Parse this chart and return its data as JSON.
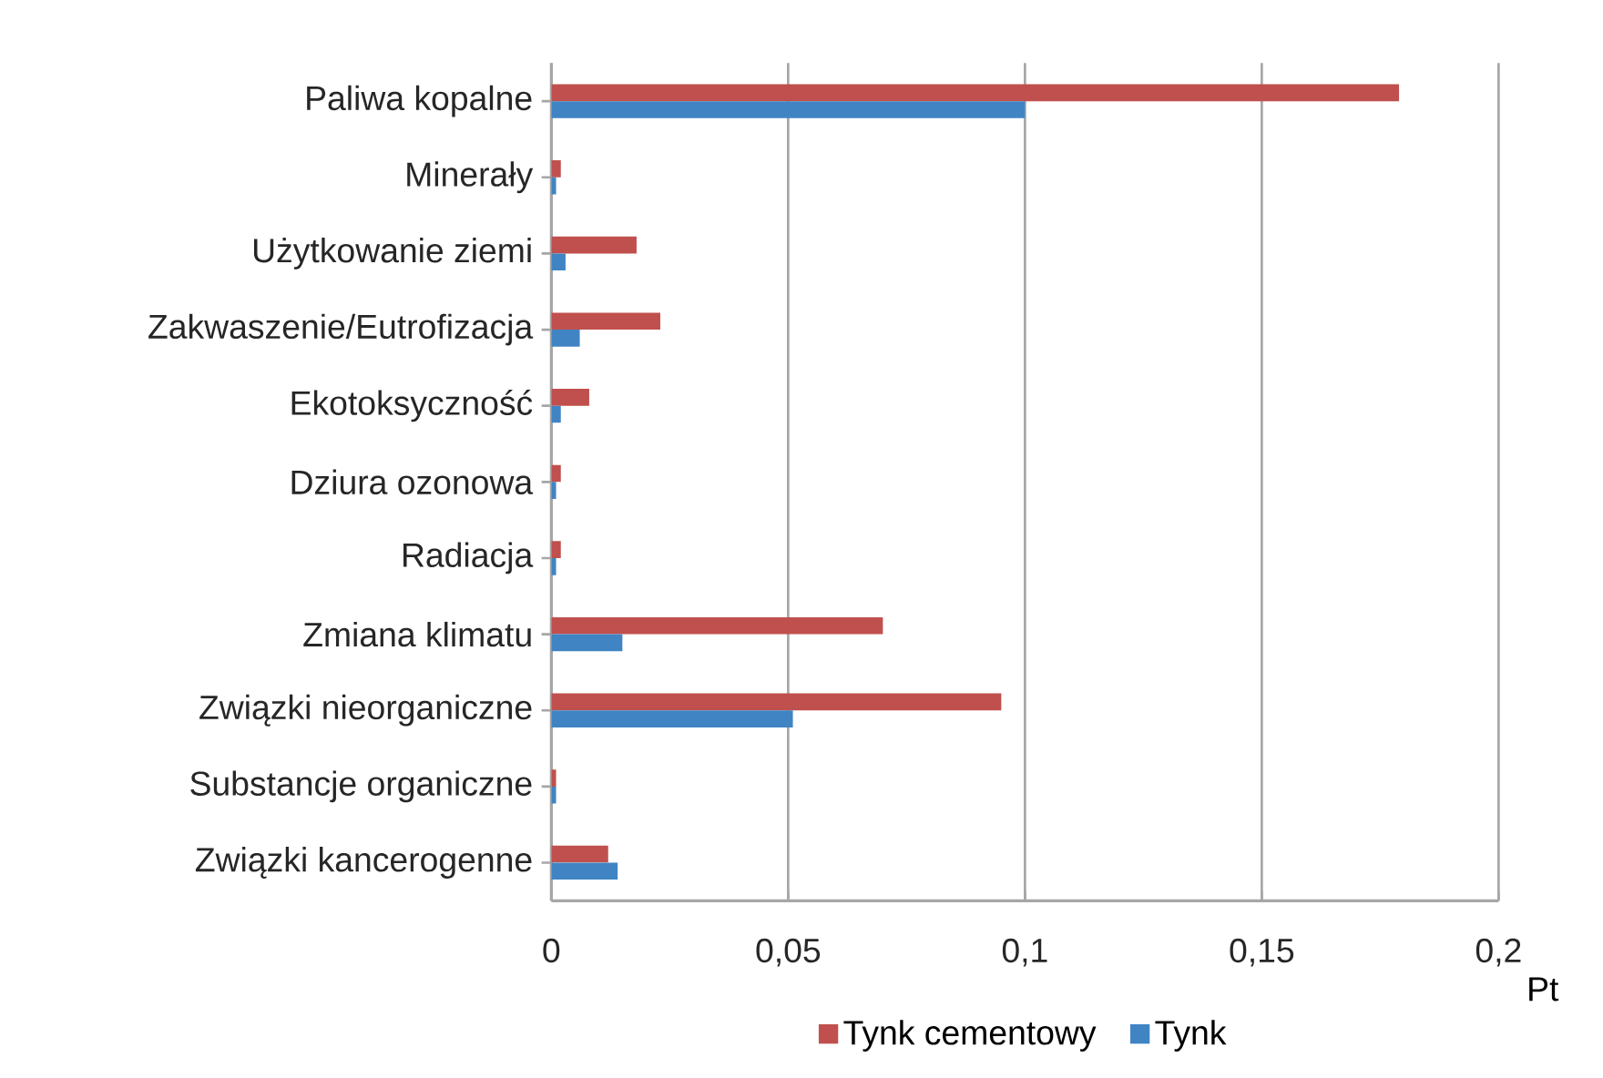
{
  "chart_data": {
    "type": "bar",
    "orientation": "horizontal",
    "xlabel": "Pt",
    "categories": [
      "Paliwa kopalne",
      "Minerały",
      "Użytkowanie ziemi",
      "Zakwaszenie/Eutrofizacja",
      "Ekotoksyczność",
      "Dziura ozonowa",
      "Radiacja",
      "Zmiana klimatu",
      "Związki nieorganiczne",
      "Substancje organiczne",
      "Związki kancerogenne"
    ],
    "series": [
      {
        "name": "Tynk cementowy",
        "color": "#c0504d",
        "values": [
          0.179,
          0.002,
          0.018,
          0.023,
          0.008,
          0.002,
          0.002,
          0.07,
          0.095,
          0.001,
          0.012
        ]
      },
      {
        "name": "Tynk",
        "color": "#4084c4",
        "values": [
          0.1,
          0.001,
          0.003,
          0.006,
          0.002,
          0.001,
          0.001,
          0.015,
          0.051,
          0.001,
          0.014
        ]
      }
    ],
    "xlim": [
      0,
      0.2
    ],
    "xticks": [
      0,
      {
        "value": 0.05,
        "label": "0,05"
      },
      {
        "value": 0.1,
        "label": "0,1"
      },
      {
        "value": 0.15,
        "label": "0,15"
      },
      {
        "value": 0.2,
        "label": "0,2"
      }
    ],
    "grid": "x",
    "legend": "bottom"
  }
}
